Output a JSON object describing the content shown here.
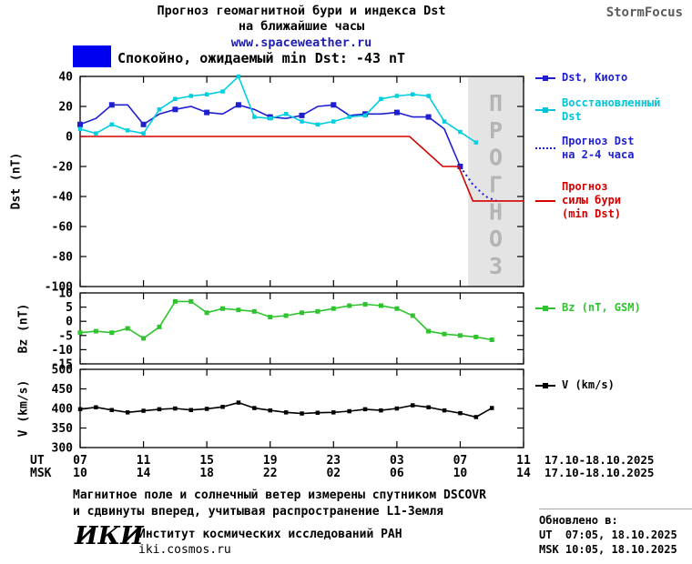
{
  "header": {
    "title_line1": "Прогноз геомагнитной бури и индекса Dst",
    "title_line2": "на ближайшие часы",
    "url": "www.spaceweather.ru",
    "brand": "StormFocus"
  },
  "status": {
    "label": "Спокойно, ожидаемый min Dst: -43 nT",
    "swatch_color": "#0000f0"
  },
  "legend": {
    "dst": [
      {
        "lines": [
          "Dst, Киото"
        ],
        "color": "#1f1fd0",
        "marker": "line-square"
      },
      {
        "lines": [
          "Восстановленный",
          "Dst"
        ],
        "color": "#00c4d8",
        "marker": "line-square"
      },
      {
        "lines": [
          "Прогноз Dst",
          "на 2-4 часа"
        ],
        "color": "#1f1fd0",
        "marker": "dotted"
      },
      {
        "lines": [
          "Прогноз",
          "силы бури",
          "(min Dst)"
        ],
        "color": "#d40000",
        "marker": "line"
      }
    ],
    "bz": [
      {
        "lines": [
          "Bz (nT, GSM)"
        ],
        "color": "#2fc42f",
        "marker": "line-square"
      }
    ],
    "v": [
      {
        "lines": [
          "V (km/s)"
        ],
        "color": "#000000",
        "marker": "line-square"
      }
    ]
  },
  "footnote": {
    "line1": "Магнитное поле и солнечный ветер измерены спутником DSCOVR",
    "line2": "и сдвинуты вперед, учитывая распространение L1-Земля"
  },
  "footer": {
    "logo": "ИКИ",
    "institute": "Институт космических исследований РАН",
    "site": "iki.cosmos.ru",
    "updated_label": "Обновлено в:",
    "updated_ut": "UT  07:05, 18.10.2025",
    "updated_msk": "MSK 10:05, 18.10.2025"
  },
  "chart_data": {
    "type": "line",
    "title": "Прогноз геомагнитной бури и индекса Dst на ближайшие часы",
    "panels": [
      {
        "name": "dst",
        "ylabel": "Dst (nT)",
        "ylim": [
          -100,
          40
        ],
        "yticks": [
          40,
          20,
          0,
          -20,
          -40,
          -60,
          -80,
          -100
        ],
        "series": [
          {
            "name": "Dst, Киото",
            "color": "#1f1fd0",
            "marker": "square",
            "marker_size": 6,
            "marker_every": 2,
            "x_start": 0,
            "values": [
              8,
              12,
              21,
              21,
              8,
              15,
              18,
              20,
              16,
              15,
              21,
              18,
              13,
              12,
              14,
              20,
              21,
              14,
              15,
              15,
              16,
              13,
              13,
              5,
              -20
            ]
          },
          {
            "name": "Восстановленный Dst",
            "color": "#00cfe0",
            "marker": "square",
            "marker_size": 4.5,
            "marker_every": 1,
            "x_start": 0,
            "values": [
              5,
              2,
              8,
              4,
              2,
              18,
              25,
              27,
              28,
              30,
              40,
              13,
              12,
              15,
              10,
              8,
              10,
              13,
              14,
              25,
              27,
              28,
              27,
              10,
              3,
              -4
            ]
          },
          {
            "name": "Прогноз Dst на 2-4 часа",
            "color": "#1f1fd0",
            "style": "dotted",
            "points": [
              [
                24,
                -20
              ],
              [
                24.8,
                -32
              ],
              [
                25.6,
                -40
              ],
              [
                26.3,
                -43
              ]
            ]
          },
          {
            "name": "Прогноз силы бури (min Dst)",
            "color": "#d40000",
            "points": [
              [
                0,
                0
              ],
              [
                20.8,
                0
              ],
              [
                22.9,
                -20
              ],
              [
                23.9,
                -20
              ],
              [
                24.8,
                -43
              ],
              [
                28,
                -43
              ]
            ]
          }
        ],
        "forecast_region": {
          "x_start": 24.5,
          "x_end": 28,
          "label": "ПРОГНОЗ",
          "fill": "#e4e4e4",
          "label_color": "#b4b4b4"
        }
      },
      {
        "name": "bz",
        "ylabel": "Bz (nT)",
        "ylim": [
          -15,
          10
        ],
        "yticks": [
          10,
          5,
          0,
          -5,
          -10,
          -15
        ],
        "series": [
          {
            "name": "Bz (nT, GSM)",
            "color": "#2fc42f",
            "marker": "square",
            "marker_size": 5,
            "marker_every": 1,
            "x_start": 0,
            "values": [
              -4,
              -3.5,
              -4,
              -2.5,
              -6,
              -2,
              7,
              7,
              3,
              4.5,
              4,
              3.5,
              1.5,
              2,
              3,
              3.5,
              4.5,
              5.5,
              6,
              5.5,
              4.5,
              2,
              -3.5,
              -4.5,
              -5,
              -5.5,
              -6.5
            ]
          }
        ]
      },
      {
        "name": "v",
        "ylabel": "V (km/s)",
        "ylim": [
          300,
          500
        ],
        "yticks": [
          500,
          450,
          400,
          350,
          300
        ],
        "series": [
          {
            "name": "V (km/s)",
            "color": "#000000",
            "marker": "square",
            "marker_size": 4.5,
            "marker_every": 1,
            "x_start": 0,
            "values": [
              398,
              403,
              396,
              390,
              394,
              398,
              400,
              396,
              399,
              404,
              415,
              401,
              395,
              390,
              387,
              389,
              390,
              393,
              398,
              395,
              400,
              408,
              403,
              395,
              388,
              378,
              401
            ]
          }
        ]
      }
    ],
    "xaxis": {
      "span_hours": [
        0,
        28
      ],
      "ticks_hours": [
        0,
        4,
        8,
        12,
        16,
        20,
        24,
        28
      ],
      "rows": [
        {
          "label": "UT",
          "ticks": [
            "07",
            "11",
            "15",
            "19",
            "23",
            "03",
            "07",
            "11"
          ],
          "date_range": "17.10-18.10.2025"
        },
        {
          "label": "MSK",
          "ticks": [
            "10",
            "14",
            "18",
            "22",
            "02",
            "06",
            "10",
            "14"
          ],
          "date_range": "17.10-18.10.2025"
        }
      ]
    }
  }
}
